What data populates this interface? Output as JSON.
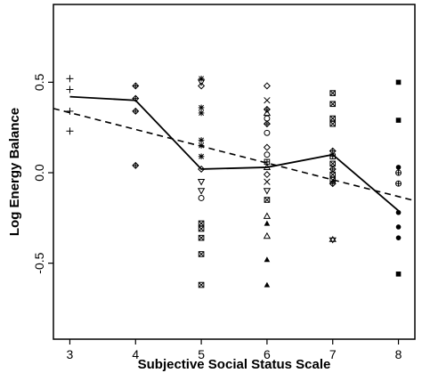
{
  "chart_data": {
    "type": "scatter",
    "title": "",
    "xlabel": "Subjective Social Status Scale",
    "ylabel": "Log Energy Balance",
    "xlim": [
      2.75,
      8.25
    ],
    "ylim": [
      -0.92,
      0.93
    ],
    "xticks": [
      3,
      4,
      5,
      6,
      7,
      8
    ],
    "xtick_labels": [
      "3",
      "4",
      "5",
      "6",
      "7",
      "8"
    ],
    "yticks": [
      0.5,
      0.0,
      -0.5
    ],
    "ytick_labels": [
      "0.5",
      "0.0",
      "-0.5"
    ],
    "grid": false,
    "legend": "none",
    "points": [
      {
        "x": 3,
        "y": 0.52,
        "marker": "plus"
      },
      {
        "x": 3,
        "y": 0.46,
        "marker": "plus"
      },
      {
        "x": 3,
        "y": 0.34,
        "marker": "plus"
      },
      {
        "x": 3,
        "y": 0.23,
        "marker": "plus"
      },
      {
        "x": 4,
        "y": 0.48,
        "marker": "diamond-plus"
      },
      {
        "x": 4,
        "y": 0.41,
        "marker": "diamond-plus"
      },
      {
        "x": 4,
        "y": 0.34,
        "marker": "diamond-plus"
      },
      {
        "x": 4,
        "y": 0.04,
        "marker": "diamond-plus"
      },
      {
        "x": 5,
        "y": 0.52,
        "marker": "star"
      },
      {
        "x": 5,
        "y": 0.5,
        "marker": "triangle-down"
      },
      {
        "x": 5,
        "y": 0.48,
        "marker": "diamond"
      },
      {
        "x": 5,
        "y": 0.36,
        "marker": "star"
      },
      {
        "x": 5,
        "y": 0.33,
        "marker": "star"
      },
      {
        "x": 5,
        "y": 0.18,
        "marker": "star"
      },
      {
        "x": 5,
        "y": 0.15,
        "marker": "star"
      },
      {
        "x": 5,
        "y": 0.09,
        "marker": "star"
      },
      {
        "x": 5,
        "y": 0.02,
        "marker": "diamond"
      },
      {
        "x": 5,
        "y": -0.05,
        "marker": "triangle-down"
      },
      {
        "x": 5,
        "y": -0.1,
        "marker": "triangle-down"
      },
      {
        "x": 5,
        "y": -0.14,
        "marker": "circle"
      },
      {
        "x": 5,
        "y": -0.28,
        "marker": "square-x"
      },
      {
        "x": 5,
        "y": -0.31,
        "marker": "square-x"
      },
      {
        "x": 5,
        "y": -0.36,
        "marker": "square-x"
      },
      {
        "x": 5,
        "y": -0.45,
        "marker": "square-x"
      },
      {
        "x": 5,
        "y": -0.62,
        "marker": "square-x"
      },
      {
        "x": 6,
        "y": 0.48,
        "marker": "diamond"
      },
      {
        "x": 6,
        "y": 0.4,
        "marker": "x"
      },
      {
        "x": 6,
        "y": 0.35,
        "marker": "diamond-plus"
      },
      {
        "x": 6,
        "y": 0.33,
        "marker": "triangle"
      },
      {
        "x": 6,
        "y": 0.3,
        "marker": "circle"
      },
      {
        "x": 6,
        "y": 0.27,
        "marker": "diamond-plus"
      },
      {
        "x": 6,
        "y": 0.22,
        "marker": "circle"
      },
      {
        "x": 6,
        "y": 0.14,
        "marker": "diamond"
      },
      {
        "x": 6,
        "y": 0.1,
        "marker": "circle"
      },
      {
        "x": 6,
        "y": 0.06,
        "marker": "square-plus"
      },
      {
        "x": 6,
        "y": 0.03,
        "marker": "triangle"
      },
      {
        "x": 6,
        "y": -0.01,
        "marker": "diamond"
      },
      {
        "x": 6,
        "y": -0.05,
        "marker": "x"
      },
      {
        "x": 6,
        "y": -0.1,
        "marker": "triangle-down"
      },
      {
        "x": 6,
        "y": -0.15,
        "marker": "square-x"
      },
      {
        "x": 6,
        "y": -0.24,
        "marker": "triangle"
      },
      {
        "x": 6,
        "y": -0.28,
        "marker": "triangle-filled"
      },
      {
        "x": 6,
        "y": -0.35,
        "marker": "triangle"
      },
      {
        "x": 6,
        "y": -0.48,
        "marker": "triangle-filled"
      },
      {
        "x": 6,
        "y": -0.62,
        "marker": "triangle-filled"
      },
      {
        "x": 7,
        "y": 0.44,
        "marker": "square-x"
      },
      {
        "x": 7,
        "y": 0.38,
        "marker": "square-x"
      },
      {
        "x": 7,
        "y": 0.3,
        "marker": "square-x"
      },
      {
        "x": 7,
        "y": 0.27,
        "marker": "square-x"
      },
      {
        "x": 7,
        "y": 0.12,
        "marker": "diamond-plus"
      },
      {
        "x": 7,
        "y": 0.09,
        "marker": "square-plus"
      },
      {
        "x": 7,
        "y": 0.05,
        "marker": "square-x"
      },
      {
        "x": 7,
        "y": 0.02,
        "marker": "diamond-plus"
      },
      {
        "x": 7,
        "y": -0.01,
        "marker": "square-x"
      },
      {
        "x": 7,
        "y": -0.04,
        "marker": "square-x"
      },
      {
        "x": 7,
        "y": -0.06,
        "marker": "diamond-plus"
      },
      {
        "x": 7,
        "y": -0.37,
        "marker": "star-of-david"
      },
      {
        "x": 8,
        "y": 0.5,
        "marker": "square-filled"
      },
      {
        "x": 8,
        "y": 0.29,
        "marker": "square-filled"
      },
      {
        "x": 8,
        "y": 0.03,
        "marker": "circle-filled"
      },
      {
        "x": 8,
        "y": 0.0,
        "marker": "circle-plus"
      },
      {
        "x": 8,
        "y": -0.06,
        "marker": "circle-plus"
      },
      {
        "x": 8,
        "y": -0.22,
        "marker": "circle-filled"
      },
      {
        "x": 8,
        "y": -0.3,
        "marker": "circle-filled"
      },
      {
        "x": 8,
        "y": -0.36,
        "marker": "circle-filled"
      },
      {
        "x": 8,
        "y": -0.56,
        "marker": "square-filled"
      }
    ],
    "mean_line": {
      "style": "solid",
      "x": [
        3,
        4,
        5,
        6,
        7,
        8
      ],
      "y": [
        0.42,
        0.4,
        0.02,
        0.03,
        0.1,
        -0.21
      ]
    },
    "trend_line": {
      "style": "dashed",
      "x": [
        2.75,
        8.25
      ],
      "y": [
        0.355,
        -0.155
      ]
    }
  }
}
